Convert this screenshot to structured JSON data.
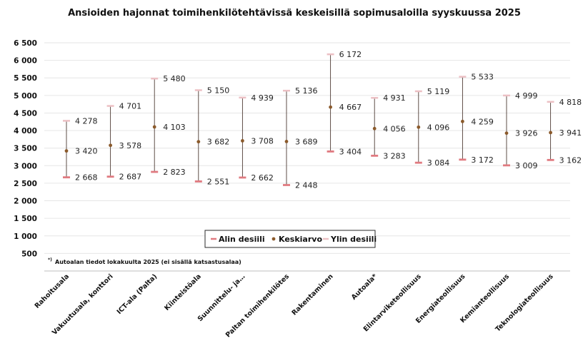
{
  "chart_data": {
    "type": "range",
    "title": "Ansioiden hajonnat toimihenkilötehtävissä keskeisillä sopimusaloilla syyskuussa 2025",
    "categories": [
      "Rahoitusala",
      "Vakuutusala, konttori",
      "ICT-ala (Palta)",
      "Kiinteistöala",
      "Suunnittelu- ja…",
      "Paltan toimihenkilötes",
      "Rakentaminen",
      "Autoala*",
      "Elintarviketeollisuus",
      "Energiateollisuus",
      "Kemianteollisuus",
      "Teknologiateollisuus"
    ],
    "series": [
      {
        "name": "Alin desiili",
        "values": [
          2668,
          2687,
          2823,
          2551,
          2662,
          2448,
          3404,
          3283,
          3084,
          3172,
          3009,
          3162
        ]
      },
      {
        "name": "Keskiarvo",
        "values": [
          3420,
          3578,
          4103,
          3682,
          3708,
          3689,
          4667,
          4056,
          4096,
          4259,
          3926,
          3941
        ]
      },
      {
        "name": "Ylin desiili",
        "values": [
          4278,
          4701,
          5480,
          5150,
          4939,
          5136,
          6172,
          4931,
          5119,
          5533,
          4999,
          4818
        ]
      }
    ],
    "data_labels": {
      "low": [
        "2 668",
        "2 687",
        "2 823",
        "2 551",
        "2 662",
        "2 448",
        "3 404",
        "3 283",
        "3 084",
        "3 172",
        "3 009",
        "3 162"
      ],
      "mean": [
        "3 420",
        "3 578",
        "4 103",
        "3 682",
        "3 708",
        "3 689",
        "4 667",
        "4 056",
        "4 096",
        "4 259",
        "3 926",
        "3 941"
      ],
      "high": [
        "4 278",
        "4 701",
        "5 480",
        "5 150",
        "4 939",
        "5 136",
        "6 172",
        "4 931",
        "5 119",
        "5 533",
        "4 999",
        "4 818"
      ]
    },
    "yticks": [
      500,
      1000,
      1500,
      2000,
      2500,
      3000,
      3500,
      4000,
      4500,
      5000,
      5500,
      6000,
      6500
    ],
    "ytick_labels": [
      "500",
      "1 000",
      "1 500",
      "2 000",
      "2 500",
      "3 000",
      "3 500",
      "4 000",
      "4 500",
      "5 000",
      "5 500",
      "6 000",
      "6 500"
    ],
    "ylim": [
      0,
      6500
    ],
    "grid": true,
    "legend": {
      "position": "bottom-center",
      "items": [
        {
          "label": "Alin desiili",
          "marker": "dash"
        },
        {
          "label": "Keskiarvo",
          "marker": "dot"
        },
        {
          "label": "Ylin desiili",
          "marker": "dash"
        }
      ]
    },
    "footnote": {
      "marker": "*)",
      "text": "Autoalan tiedot lokakuulta 2025 (ei sisällä katsastusalaa)"
    },
    "colors": {
      "low": "#e07a80",
      "mean": "#8b5a2b",
      "high": "#ecc0c4",
      "range_line": "#4d3b34",
      "grid": "#e6e6e6",
      "axis": "#bfbfbf"
    }
  }
}
